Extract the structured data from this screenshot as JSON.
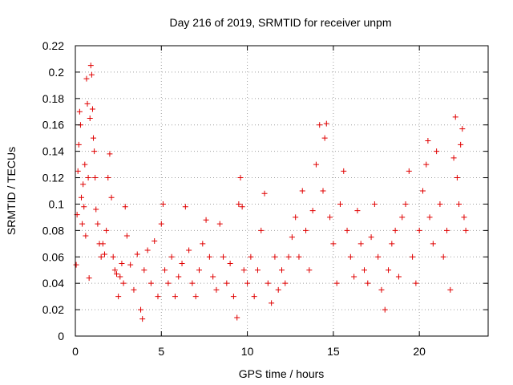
{
  "chart_data": {
    "type": "scatter",
    "title": "Day 216 of 2019, SRMTID for receiver unpm",
    "xlabel": "GPS time / hours",
    "ylabel": "SRMTID / TECUs",
    "xlim": [
      0,
      24
    ],
    "ylim": [
      0,
      0.22
    ],
    "xticks": [
      0,
      5,
      10,
      15,
      20
    ],
    "xtick_labels": [
      "0",
      "5",
      "10",
      "15",
      "20"
    ],
    "yticks": [
      0,
      0.02,
      0.04,
      0.06,
      0.08,
      0.1,
      0.12,
      0.14,
      0.16,
      0.18,
      0.2,
      0.22
    ],
    "ytick_labels": [
      "0",
      "0.02",
      "0.04",
      "0.06",
      "0.08",
      "0.1",
      "0.12",
      "0.14",
      "0.16",
      "0.18",
      "0.2",
      "0.22"
    ],
    "grid": true,
    "marker": "+",
    "series_color": "#e00000",
    "series": [
      {
        "name": "SRMTID",
        "points": [
          [
            0.05,
            0.054
          ],
          [
            0.1,
            0.092
          ],
          [
            0.15,
            0.125
          ],
          [
            0.2,
            0.145
          ],
          [
            0.25,
            0.17
          ],
          [
            0.3,
            0.16
          ],
          [
            0.35,
            0.105
          ],
          [
            0.4,
            0.085
          ],
          [
            0.45,
            0.115
          ],
          [
            0.5,
            0.098
          ],
          [
            0.55,
            0.13
          ],
          [
            0.6,
            0.076
          ],
          [
            0.65,
            0.195
          ],
          [
            0.7,
            0.176
          ],
          [
            0.75,
            0.12
          ],
          [
            0.8,
            0.044
          ],
          [
            0.85,
            0.165
          ],
          [
            0.9,
            0.205
          ],
          [
            0.95,
            0.198
          ],
          [
            1.0,
            0.172
          ],
          [
            1.05,
            0.15
          ],
          [
            1.1,
            0.14
          ],
          [
            1.15,
            0.12
          ],
          [
            1.2,
            0.096
          ],
          [
            1.3,
            0.085
          ],
          [
            1.4,
            0.07
          ],
          [
            1.5,
            0.06
          ],
          [
            1.6,
            0.07
          ],
          [
            1.7,
            0.062
          ],
          [
            1.8,
            0.08
          ],
          [
            1.9,
            0.12
          ],
          [
            2.0,
            0.138
          ],
          [
            2.1,
            0.105
          ],
          [
            2.2,
            0.06
          ],
          [
            2.3,
            0.05
          ],
          [
            2.4,
            0.047
          ],
          [
            2.5,
            0.03
          ],
          [
            2.6,
            0.045
          ],
          [
            2.7,
            0.055
          ],
          [
            2.8,
            0.04
          ],
          [
            2.9,
            0.098
          ],
          [
            3.0,
            0.076
          ],
          [
            3.2,
            0.054
          ],
          [
            3.4,
            0.035
          ],
          [
            3.6,
            0.062
          ],
          [
            3.8,
            0.02
          ],
          [
            3.9,
            0.013
          ],
          [
            4.0,
            0.05
          ],
          [
            4.2,
            0.065
          ],
          [
            4.4,
            0.04
          ],
          [
            4.6,
            0.072
          ],
          [
            4.8,
            0.03
          ],
          [
            5.0,
            0.085
          ],
          [
            5.1,
            0.1
          ],
          [
            5.2,
            0.05
          ],
          [
            5.4,
            0.04
          ],
          [
            5.6,
            0.06
          ],
          [
            5.8,
            0.03
          ],
          [
            6.0,
            0.045
          ],
          [
            6.2,
            0.055
          ],
          [
            6.4,
            0.098
          ],
          [
            6.6,
            0.065
          ],
          [
            6.8,
            0.04
          ],
          [
            7.0,
            0.03
          ],
          [
            7.2,
            0.05
          ],
          [
            7.4,
            0.07
          ],
          [
            7.6,
            0.088
          ],
          [
            7.8,
            0.06
          ],
          [
            8.0,
            0.045
          ],
          [
            8.2,
            0.035
          ],
          [
            8.4,
            0.085
          ],
          [
            8.6,
            0.06
          ],
          [
            8.8,
            0.04
          ],
          [
            9.0,
            0.055
          ],
          [
            9.2,
            0.03
          ],
          [
            9.4,
            0.014
          ],
          [
            9.5,
            0.1
          ],
          [
            9.6,
            0.12
          ],
          [
            9.7,
            0.098
          ],
          [
            9.8,
            0.05
          ],
          [
            10.0,
            0.04
          ],
          [
            10.2,
            0.06
          ],
          [
            10.4,
            0.03
          ],
          [
            10.6,
            0.05
          ],
          [
            10.8,
            0.08
          ],
          [
            11.0,
            0.108
          ],
          [
            11.2,
            0.04
          ],
          [
            11.4,
            0.025
          ],
          [
            11.6,
            0.06
          ],
          [
            11.8,
            0.035
          ],
          [
            12.0,
            0.05
          ],
          [
            12.2,
            0.04
          ],
          [
            12.4,
            0.06
          ],
          [
            12.6,
            0.075
          ],
          [
            12.8,
            0.09
          ],
          [
            13.0,
            0.06
          ],
          [
            13.2,
            0.11
          ],
          [
            13.4,
            0.08
          ],
          [
            13.6,
            0.05
          ],
          [
            13.8,
            0.095
          ],
          [
            14.0,
            0.13
          ],
          [
            14.2,
            0.16
          ],
          [
            14.4,
            0.11
          ],
          [
            14.5,
            0.15
          ],
          [
            14.6,
            0.161
          ],
          [
            14.8,
            0.09
          ],
          [
            15.0,
            0.07
          ],
          [
            15.2,
            0.04
          ],
          [
            15.4,
            0.1
          ],
          [
            15.6,
            0.125
          ],
          [
            15.8,
            0.08
          ],
          [
            16.0,
            0.06
          ],
          [
            16.2,
            0.045
          ],
          [
            16.4,
            0.095
          ],
          [
            16.6,
            0.07
          ],
          [
            16.8,
            0.05
          ],
          [
            17.0,
            0.04
          ],
          [
            17.2,
            0.075
          ],
          [
            17.4,
            0.1
          ],
          [
            17.6,
            0.06
          ],
          [
            17.8,
            0.035
          ],
          [
            18.0,
            0.02
          ],
          [
            18.2,
            0.05
          ],
          [
            18.4,
            0.07
          ],
          [
            18.6,
            0.08
          ],
          [
            18.8,
            0.045
          ],
          [
            19.0,
            0.09
          ],
          [
            19.2,
            0.1
          ],
          [
            19.4,
            0.125
          ],
          [
            19.6,
            0.06
          ],
          [
            19.8,
            0.04
          ],
          [
            20.0,
            0.08
          ],
          [
            20.2,
            0.11
          ],
          [
            20.4,
            0.13
          ],
          [
            20.5,
            0.148
          ],
          [
            20.6,
            0.09
          ],
          [
            20.8,
            0.07
          ],
          [
            21.0,
            0.14
          ],
          [
            21.2,
            0.1
          ],
          [
            21.4,
            0.06
          ],
          [
            21.6,
            0.08
          ],
          [
            21.8,
            0.035
          ],
          [
            22.0,
            0.135
          ],
          [
            22.1,
            0.166
          ],
          [
            22.2,
            0.12
          ],
          [
            22.3,
            0.1
          ],
          [
            22.4,
            0.145
          ],
          [
            22.5,
            0.157
          ],
          [
            22.6,
            0.09
          ],
          [
            22.7,
            0.08
          ]
        ]
      }
    ]
  }
}
